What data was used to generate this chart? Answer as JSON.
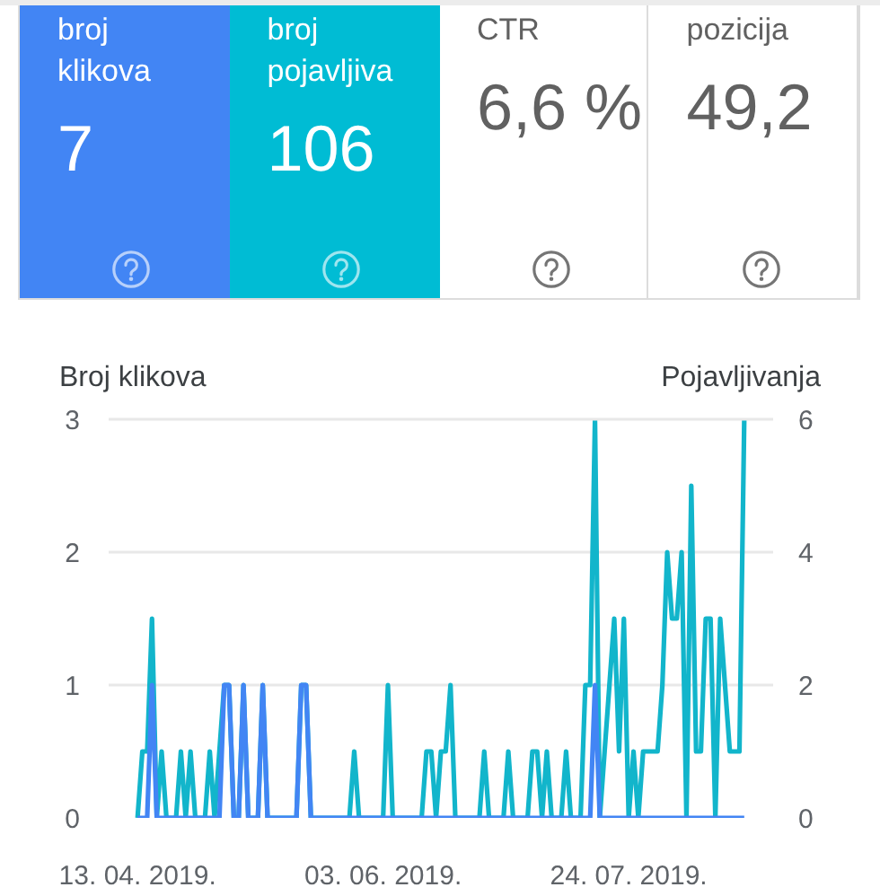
{
  "chart_data": [
    {
      "type": "other",
      "categories": [
        "broj klikova",
        "broj pojavljiva",
        "CTR",
        "pozicija"
      ],
      "value_labels": [
        "7",
        "106",
        "6,6 %",
        "49,2"
      ],
      "colors": [
        "#4285f4",
        "#00bcd4",
        "#ffffff",
        "#ffffff"
      ]
    },
    {
      "type": "line",
      "ylabel": "Broj klikova",
      "y2label": "Pojavljivanja",
      "x": [
        "2019-04-13",
        "2019-04-14",
        "2019-04-15",
        "2019-04-16",
        "2019-04-17",
        "2019-04-18",
        "2019-04-19",
        "2019-04-20",
        "2019-04-21",
        "2019-04-22",
        "2019-04-23",
        "2019-04-24",
        "2019-04-25",
        "2019-04-26",
        "2019-04-27",
        "2019-04-28",
        "2019-04-29",
        "2019-04-30",
        "2019-05-01",
        "2019-05-02",
        "2019-05-03",
        "2019-05-04",
        "2019-05-05",
        "2019-05-06",
        "2019-05-07",
        "2019-05-08",
        "2019-05-09",
        "2019-05-10",
        "2019-05-11",
        "2019-05-12",
        "2019-05-13",
        "2019-05-14",
        "2019-05-15",
        "2019-05-16",
        "2019-05-17",
        "2019-05-18",
        "2019-05-19",
        "2019-05-20",
        "2019-05-21",
        "2019-05-22",
        "2019-05-23",
        "2019-05-24",
        "2019-05-25",
        "2019-05-26",
        "2019-05-27",
        "2019-05-28",
        "2019-05-29",
        "2019-05-30",
        "2019-05-31",
        "2019-06-01",
        "2019-06-02",
        "2019-06-03",
        "2019-06-04",
        "2019-06-05",
        "2019-06-06",
        "2019-06-07",
        "2019-06-08",
        "2019-06-09",
        "2019-06-10",
        "2019-06-11",
        "2019-06-12",
        "2019-06-13",
        "2019-06-14",
        "2019-06-15",
        "2019-06-16",
        "2019-06-17",
        "2019-06-18",
        "2019-06-19",
        "2019-06-20",
        "2019-06-21",
        "2019-06-22",
        "2019-06-23",
        "2019-06-24",
        "2019-06-25",
        "2019-06-26",
        "2019-06-27",
        "2019-06-28",
        "2019-06-29",
        "2019-06-30",
        "2019-07-01",
        "2019-07-02",
        "2019-07-03",
        "2019-07-04",
        "2019-07-05",
        "2019-07-06",
        "2019-07-07",
        "2019-07-08",
        "2019-07-09",
        "2019-07-10",
        "2019-07-11",
        "2019-07-12",
        "2019-07-13",
        "2019-07-14",
        "2019-07-15",
        "2019-07-16",
        "2019-07-17",
        "2019-07-18",
        "2019-07-19",
        "2019-07-20",
        "2019-07-21",
        "2019-07-22",
        "2019-07-23",
        "2019-07-24",
        "2019-07-25",
        "2019-07-26",
        "2019-07-27",
        "2019-07-28",
        "2019-07-29",
        "2019-07-30",
        "2019-07-31",
        "2019-08-01",
        "2019-08-02",
        "2019-08-03",
        "2019-08-04",
        "2019-08-05",
        "2019-08-06",
        "2019-08-07",
        "2019-08-08",
        "2019-08-09",
        "2019-08-10",
        "2019-08-11",
        "2019-08-12",
        "2019-08-13",
        "2019-08-14",
        "2019-08-15",
        "2019-08-16",
        "2019-08-17"
      ],
      "xlim": [
        "2019-04-07",
        "2019-08-23"
      ],
      "xticks": [
        {
          "value": "2019-04-13",
          "label": "13. 04. 2019."
        },
        {
          "value": "2019-06-03",
          "label": "03. 06. 2019."
        },
        {
          "value": "2019-07-24",
          "label": "24. 07. 2019."
        }
      ],
      "ylim": [
        0,
        3
      ],
      "yticks": [
        0,
        1,
        2,
        3
      ],
      "y2lim": [
        0,
        6
      ],
      "y2ticks": [
        0,
        2,
        4,
        6
      ],
      "grid": "y",
      "series": [
        {
          "color": "#12b5cb",
          "axis": "y2",
          "values": [
            0,
            1,
            1,
            3,
            0,
            1,
            0,
            0,
            0,
            1,
            0,
            1,
            0,
            0,
            0,
            1,
            0,
            1,
            2,
            2,
            0,
            0,
            2,
            0,
            0,
            0,
            2,
            0,
            0,
            0,
            0,
            0,
            0,
            0,
            2,
            2,
            0,
            0,
            0,
            0,
            0,
            0,
            0,
            0,
            0,
            1,
            0,
            0,
            0,
            0,
            0,
            0,
            2,
            0,
            0,
            0,
            0,
            0,
            0,
            0,
            1,
            1,
            0,
            1,
            1,
            2,
            0,
            0,
            0,
            0,
            0,
            0,
            1,
            0,
            0,
            0,
            0,
            1,
            0,
            0,
            0,
            0,
            1,
            1,
            0,
            1,
            0,
            0,
            0,
            1,
            0,
            0,
            0,
            2,
            2,
            6,
            0,
            1,
            2,
            3,
            1,
            3,
            0,
            1,
            0,
            1,
            1,
            1,
            1,
            2,
            4,
            3,
            3,
            4,
            0,
            5,
            1,
            1,
            3,
            3,
            0,
            3,
            2,
            1,
            1,
            1,
            6
          ]
        },
        {
          "color": "#4285f4",
          "axis": "y",
          "values": [
            0,
            0,
            0,
            1,
            0,
            0,
            0,
            0,
            0,
            0,
            0,
            0,
            0,
            0,
            0,
            0,
            0,
            0,
            1,
            1,
            0,
            0,
            1,
            0,
            0,
            0,
            1,
            0,
            0,
            0,
            0,
            0,
            0,
            0,
            1,
            1,
            0,
            0,
            0,
            0,
            0,
            0,
            0,
            0,
            0,
            0,
            0,
            0,
            0,
            0,
            0,
            0,
            0,
            0,
            0,
            0,
            0,
            0,
            0,
            0,
            0,
            0,
            0,
            0,
            0,
            0,
            0,
            0,
            0,
            0,
            0,
            0,
            0,
            0,
            0,
            0,
            0,
            0,
            0,
            0,
            0,
            0,
            0,
            0,
            0,
            0,
            0,
            0,
            0,
            0,
            0,
            0,
            0,
            0,
            0,
            1,
            0,
            0,
            0,
            0,
            0,
            0,
            0,
            0,
            0,
            0,
            0,
            0,
            0,
            0,
            0,
            0,
            0,
            0,
            0,
            0,
            0,
            0,
            0,
            0,
            0,
            0,
            0,
            0,
            0,
            0,
            0
          ]
        }
      ]
    }
  ]
}
